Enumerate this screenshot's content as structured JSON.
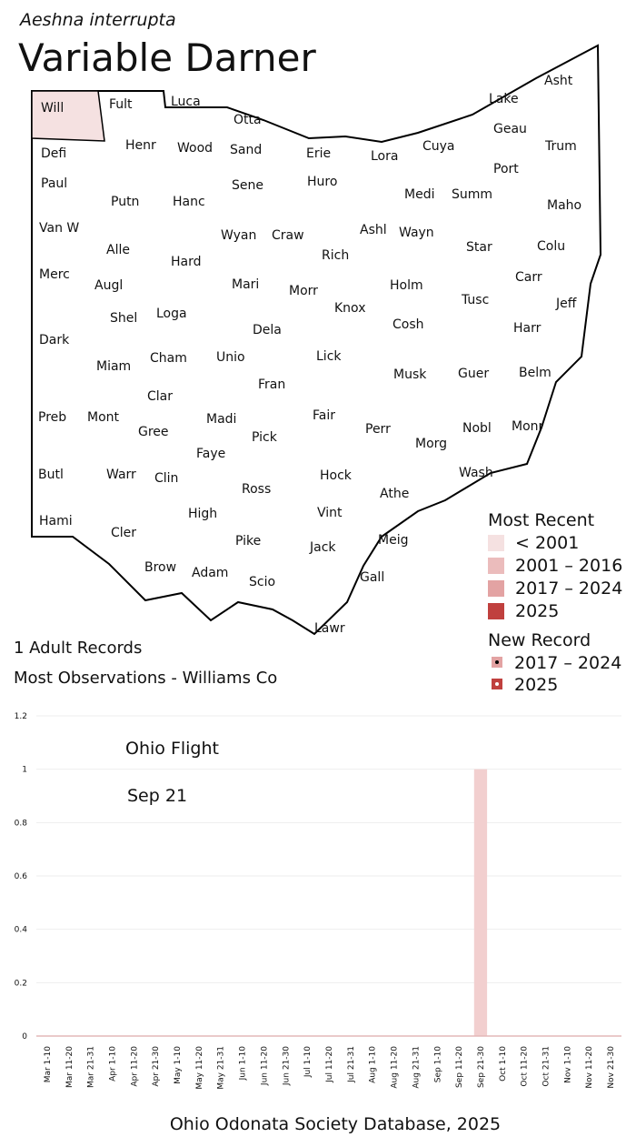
{
  "header": {
    "scientific_name": "Aeshna interrupta",
    "common_name": "Variable Darner"
  },
  "map": {
    "counties": [
      "Will",
      "Fult",
      "Luca",
      "Otta",
      "Asht",
      "Lake",
      "Geau",
      "Cuya",
      "Trum",
      "Defi",
      "Henr",
      "Wood",
      "Sand",
      "Erie",
      "Lora",
      "Paul",
      "Sene",
      "Huro",
      "Medi",
      "Summ",
      "Port",
      "Maho",
      "Putn",
      "Hanc",
      "Van W",
      "Ashl",
      "Wayn",
      "Star",
      "Colu",
      "Alle",
      "Wyan",
      "Craw",
      "Rich",
      "Hard",
      "Carr",
      "Merc",
      "Augl",
      "Mari",
      "Morr",
      "Holm",
      "Tusc",
      "Jeff",
      "Knox",
      "Shel",
      "Loga",
      "Dela",
      "Cosh",
      "Harr",
      "Dark",
      "Cham",
      "Unio",
      "Lick",
      "Miam",
      "Belm",
      "Musk",
      "Guer",
      "Fran",
      "Clar",
      "Preb",
      "Mont",
      "Madi",
      "Fair",
      "Perr",
      "Gree",
      "Nobl",
      "Monr",
      "Pick",
      "Morg",
      "Faye",
      "Butl",
      "Warr",
      "Clin",
      "Hock",
      "Wash",
      "Ross",
      "Athe",
      "Vint",
      "High",
      "Hami",
      "Cler",
      "Meig",
      "Pike",
      "Jack",
      "Brow",
      "Adam",
      "Scio",
      "Gall",
      "Lawr"
    ],
    "recorded_county": {
      "name": "Will",
      "color": "#f5e1e1"
    }
  },
  "legend": {
    "most_recent": {
      "title": "Most Recent",
      "items": [
        {
          "label": "< 2001",
          "color": "#f5e1e1"
        },
        {
          "label": "2001 – 2016",
          "color": "#ebbcbc"
        },
        {
          "label": "2017 – 2024",
          "color": "#e3a3a3"
        },
        {
          "label": "2025",
          "color": "#c0403e"
        }
      ]
    },
    "new_record": {
      "title": "New Record",
      "items": [
        {
          "label": "2017 – 2024",
          "color": "#e3a3a3"
        },
        {
          "label": "2025",
          "color": "#c0403e"
        }
      ]
    }
  },
  "stats": {
    "records": "1 Adult Records",
    "most_observations": "Most Observations - Williams Co"
  },
  "chart_data": {
    "type": "bar",
    "annotations": [
      "Ohio Flight",
      "Sep 21"
    ],
    "categories": [
      "Mar 1-10",
      "Mar 11-20",
      "Mar 21-31",
      "Apr 1-10",
      "Apr 11-20",
      "Apr 21-30",
      "May 1-10",
      "May 11-20",
      "May 21-31",
      "Jun 1-10",
      "Jun 11-20",
      "Jun 21-30",
      "Jul 1-10",
      "Jul 11-20",
      "Jul 21-31",
      "Aug 1-10",
      "Aug 11-20",
      "Aug 21-31",
      "Sep 1-10",
      "Sep 11-20",
      "Sep 21-30",
      "Oct 1-10",
      "Oct 11-20",
      "Oct 21-31",
      "Nov 1-10",
      "Nov 11-20",
      "Nov 21-30"
    ],
    "values": [
      0,
      0,
      0,
      0,
      0,
      0,
      0,
      0,
      0,
      0,
      0,
      0,
      0,
      0,
      0,
      0,
      0,
      0,
      0,
      0,
      1,
      0,
      0,
      0,
      0,
      0,
      0
    ],
    "color": "#f2cfcf",
    "ylim": [
      0,
      1.2
    ],
    "yticks": [
      0,
      0.2,
      0.4,
      0.6,
      0.8,
      1,
      1.2
    ],
    "grid": true
  },
  "footer": "Ohio Odonata Society Database, 2025"
}
